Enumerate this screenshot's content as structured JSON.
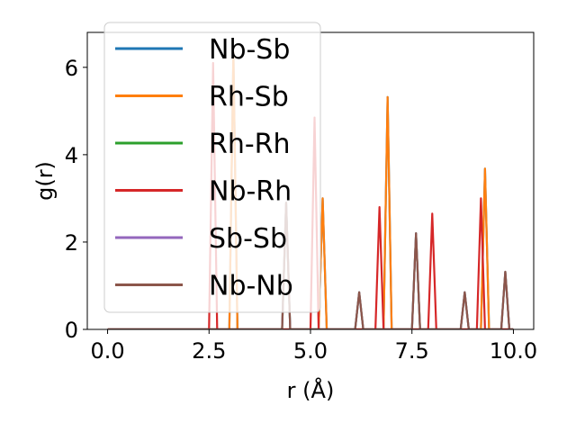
{
  "chart_data": {
    "type": "line",
    "title": "",
    "xlabel": "r (Å)",
    "ylabel": "g(r)",
    "xlim": [
      -0.5,
      10.5
    ],
    "ylim": [
      0,
      6.8
    ],
    "xticks": [
      0.0,
      2.5,
      5.0,
      7.5,
      10.0
    ],
    "xtick_labels": [
      "0.0",
      "2.5",
      "5.0",
      "7.5",
      "10.0"
    ],
    "yticks": [
      0,
      2,
      4,
      6
    ],
    "ytick_labels": [
      "0",
      "2",
      "4",
      "6"
    ],
    "grid": false,
    "legend_position": "top-left",
    "series": [
      {
        "name": "Nb-Sb",
        "color": "#1f77b4",
        "peaks": [
          [
            3.1,
            6.35
          ],
          [
            5.3,
            3.0
          ],
          [
            6.9,
            5.32
          ],
          [
            9.3,
            3.68
          ]
        ]
      },
      {
        "name": "Rh-Sb",
        "color": "#ff7f0e",
        "peaks": [
          [
            3.1,
            6.35
          ],
          [
            5.3,
            3.0
          ],
          [
            6.9,
            5.32
          ],
          [
            9.3,
            3.68
          ]
        ]
      },
      {
        "name": "Rh-Rh",
        "color": "#2ca02c",
        "peaks": [
          [
            4.4,
            2.9
          ],
          [
            6.2,
            0.85
          ],
          [
            7.6,
            2.2
          ],
          [
            8.8,
            0.85
          ],
          [
            9.8,
            1.32
          ]
        ]
      },
      {
        "name": "Nb-Rh",
        "color": "#d62728",
        "peaks": [
          [
            2.6,
            6.1
          ],
          [
            5.1,
            4.85
          ],
          [
            6.7,
            2.8
          ],
          [
            8.0,
            2.65
          ],
          [
            9.2,
            3.0
          ]
        ]
      },
      {
        "name": "Sb-Sb",
        "color": "#9467bd",
        "peaks": [
          [
            4.4,
            2.9
          ],
          [
            6.2,
            0.85
          ],
          [
            7.6,
            2.2
          ],
          [
            8.8,
            0.85
          ],
          [
            9.8,
            1.32
          ]
        ]
      },
      {
        "name": "Nb-Nb",
        "color": "#8c564b",
        "peaks": [
          [
            4.4,
            2.9
          ],
          [
            6.2,
            0.85
          ],
          [
            7.6,
            2.2
          ],
          [
            8.8,
            0.85
          ],
          [
            9.8,
            1.32
          ]
        ]
      }
    ]
  }
}
